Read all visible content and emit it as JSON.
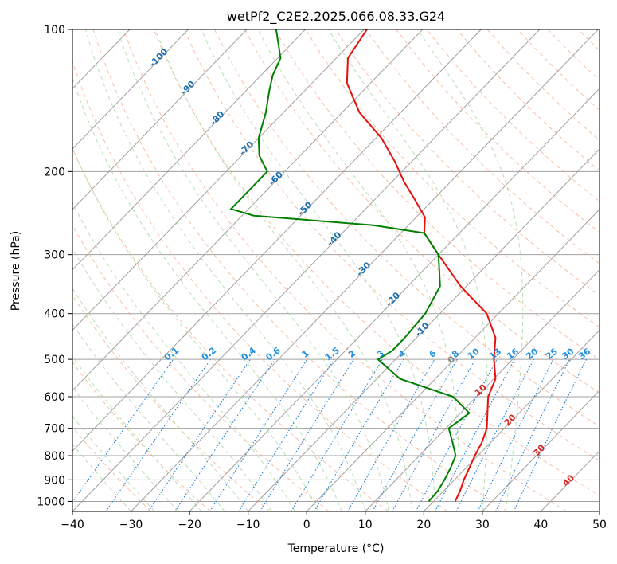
{
  "chart_data": {
    "type": "line",
    "title": "wetPf2_C2E2.2025.066.08.33.G24",
    "xlabel": "Temperature (°C)",
    "ylabel": "Pressure (hPa)",
    "xlim": [
      -40,
      50
    ],
    "ylim": [
      1050,
      100
    ],
    "y_scale": "log",
    "skew": "skew-T log-p",
    "grid": true,
    "xticks": [
      -40,
      -30,
      -20,
      -10,
      0,
      10,
      20,
      30,
      40,
      50
    ],
    "yticks": [
      100,
      200,
      300,
      400,
      500,
      600,
      700,
      800,
      900,
      1000
    ],
    "series": [
      {
        "role": "temperature",
        "color": "#e8100c",
        "points": [
          {
            "p": 1000,
            "t": 23.7
          },
          {
            "p": 950,
            "t": 22.8
          },
          {
            "p": 900,
            "t": 21.6
          },
          {
            "p": 850,
            "t": 20.6
          },
          {
            "p": 800,
            "t": 19.5
          },
          {
            "p": 750,
            "t": 18.5
          },
          {
            "p": 700,
            "t": 17.0
          },
          {
            "p": 650,
            "t": 14.6
          },
          {
            "p": 600,
            "t": 12.0
          },
          {
            "p": 550,
            "t": 10.3
          },
          {
            "p": 500,
            "t": 6.8
          },
          {
            "p": 450,
            "t": 3.5
          },
          {
            "p": 400,
            "t": -2.0
          },
          {
            "p": 350,
            "t": -11.0
          },
          {
            "p": 300,
            "t": -20.0
          },
          {
            "p": 270,
            "t": -26.0
          },
          {
            "p": 250,
            "t": -28.5
          },
          {
            "p": 230,
            "t": -33.0
          },
          {
            "p": 210,
            "t": -38.0
          },
          {
            "p": 190,
            "t": -43.0
          },
          {
            "p": 170,
            "t": -49.0
          },
          {
            "p": 150,
            "t": -57.0
          },
          {
            "p": 130,
            "t": -64.0
          },
          {
            "p": 115,
            "t": -68.0
          },
          {
            "p": 100,
            "t": -69.5
          }
        ]
      },
      {
        "role": "dewpoint",
        "color": "#008000",
        "points": [
          {
            "p": 1000,
            "t": 19.2
          },
          {
            "p": 950,
            "t": 19.0
          },
          {
            "p": 900,
            "t": 18.3
          },
          {
            "p": 850,
            "t": 17.4
          },
          {
            "p": 800,
            "t": 16.2
          },
          {
            "p": 750,
            "t": 13.5
          },
          {
            "p": 700,
            "t": 10.5
          },
          {
            "p": 650,
            "t": 11.5
          },
          {
            "p": 600,
            "t": 6.0
          },
          {
            "p": 550,
            "t": -6.0
          },
          {
            "p": 500,
            "t": -13.0
          },
          {
            "p": 480,
            "t": -12.0
          },
          {
            "p": 450,
            "t": -12.0
          },
          {
            "p": 400,
            "t": -12.5
          },
          {
            "p": 350,
            "t": -14.5
          },
          {
            "p": 300,
            "t": -20.0
          },
          {
            "p": 270,
            "t": -26.0
          },
          {
            "p": 260,
            "t": -36.0
          },
          {
            "p": 248,
            "t": -58.0
          },
          {
            "p": 240,
            "t": -63.0
          },
          {
            "p": 220,
            "t": -63.0
          },
          {
            "p": 200,
            "t": -63.0
          },
          {
            "p": 185,
            "t": -67.0
          },
          {
            "p": 170,
            "t": -70.0
          },
          {
            "p": 150,
            "t": -73.0
          },
          {
            "p": 135,
            "t": -76.0
          },
          {
            "p": 125,
            "t": -78.0
          },
          {
            "p": 115,
            "t": -79.5
          },
          {
            "p": 100,
            "t": -85.0
          }
        ]
      }
    ],
    "dry_adiabat_labels": [
      "-100",
      "-90",
      "-80",
      "-70",
      "-60",
      "-50",
      "-40",
      "-30",
      "-20",
      "-10",
      "0",
      "10",
      "20",
      "30",
      "40"
    ],
    "mixing_ratio_labels": [
      "0.1",
      "0.2",
      "0.4",
      "0.6",
      "1",
      "1.5",
      "2",
      "3",
      "4",
      "6",
      "8",
      "10",
      "13",
      "16",
      "20",
      "25",
      "30",
      "36"
    ],
    "colors": {
      "isotherm_grid": "#a0a0a0",
      "dry_adiabat": "#f4a582",
      "moist_adiabat": "#a6d8a0",
      "mixing_ratio": "#1f7fd6",
      "adiabat_label_cold": "#1f6fb0",
      "adiabat_label_warm": "#d62728",
      "adiabat_label_zero": "#888888",
      "mixing_label": "#1f8fe0"
    }
  }
}
